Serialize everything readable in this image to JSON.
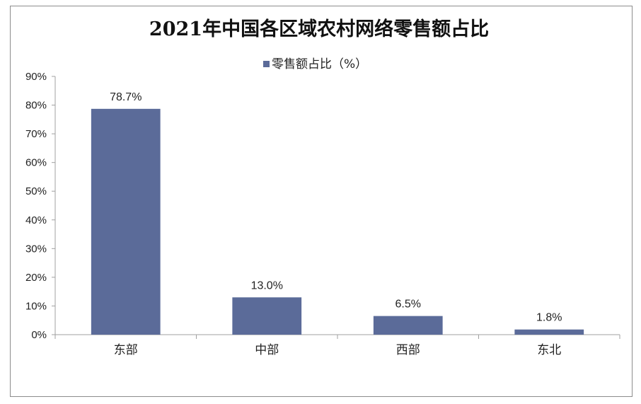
{
  "chart_data": {
    "type": "bar",
    "title": "2021年中国各区域农村网络零售额占比",
    "categories": [
      "东部",
      "中部",
      "西部",
      "东北"
    ],
    "series": [
      {
        "name": "零售额占比（%）",
        "values": [
          78.7,
          13.0,
          6.5,
          1.8
        ]
      }
    ],
    "data_labels": [
      "78.7%",
      "13.0%",
      "6.5%",
      "1.8%"
    ],
    "y_ticks": [
      "0%",
      "10%",
      "20%",
      "30%",
      "40%",
      "50%",
      "60%",
      "70%",
      "80%",
      "90%"
    ],
    "ylim": [
      0,
      90
    ],
    "grid": false,
    "legend_position": "top",
    "bar_color": "#5b6b99",
    "axis_color": "#a0a0a0"
  }
}
